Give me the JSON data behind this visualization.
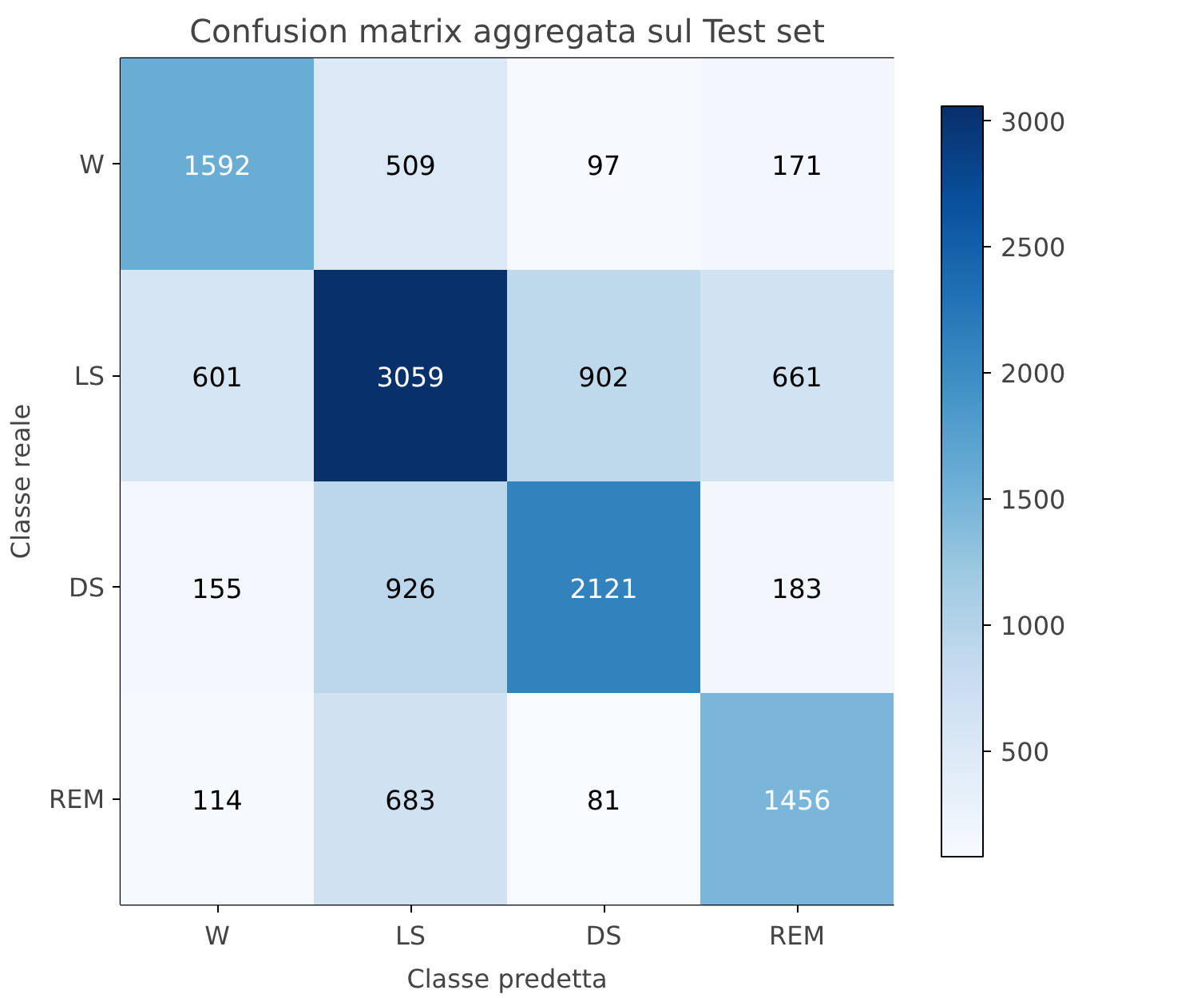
{
  "chart_data": {
    "type": "heatmap",
    "title": "Confusion matrix aggregata sul Test set",
    "xlabel": "Classe predetta",
    "ylabel": "Classe reale",
    "categories": [
      "W",
      "LS",
      "DS",
      "REM"
    ],
    "y_categories": [
      "W",
      "LS",
      "DS",
      "REM"
    ],
    "cells": [
      [
        1592,
        509,
        97,
        171
      ],
      [
        601,
        3059,
        902,
        661
      ],
      [
        155,
        926,
        2121,
        183
      ],
      [
        114,
        683,
        81,
        1456
      ]
    ],
    "clim": [
      81,
      3059
    ],
    "cticks": [
      500,
      1000,
      1500,
      2000,
      2500,
      3000
    ],
    "data_labels": true
  }
}
